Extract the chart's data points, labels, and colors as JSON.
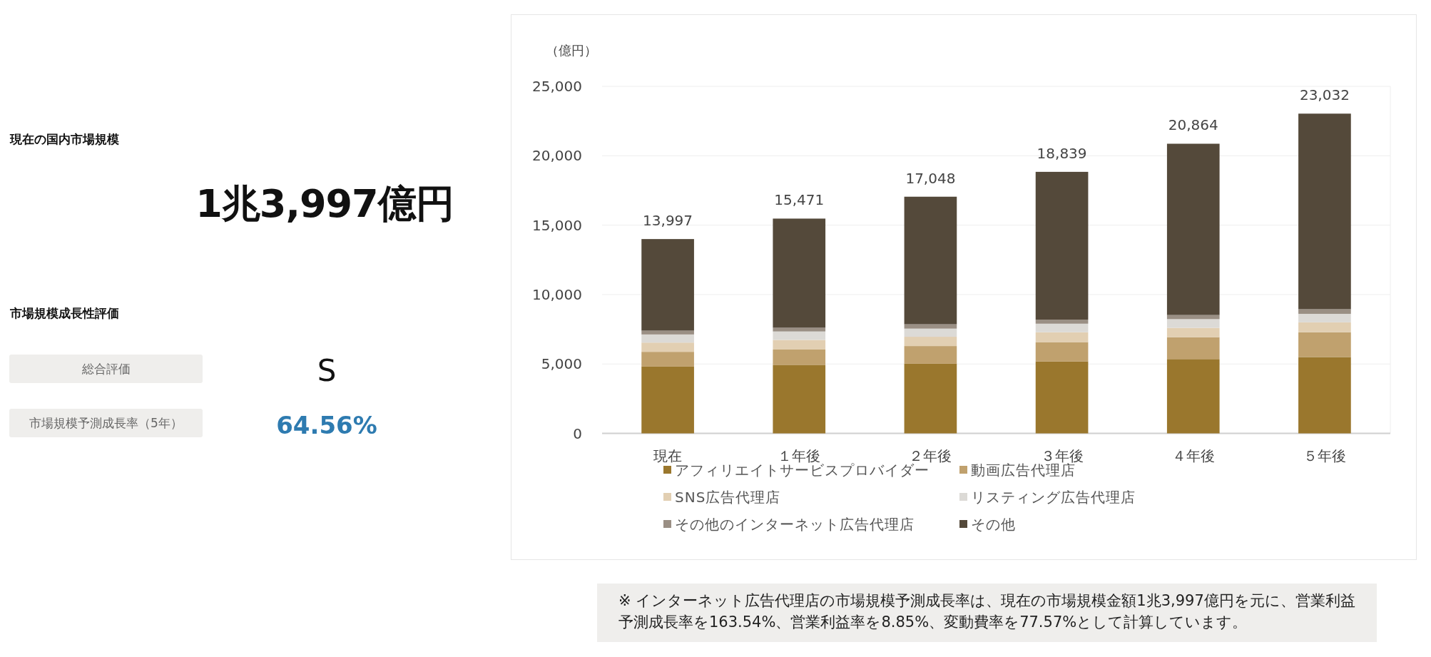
{
  "chart_data": [
    {
      "type": "other",
      "title": "現在の国内市場規模",
      "annotations": [
        "1兆3,997億円",
        "市場規模成長性評価",
        "総合評価",
        "S",
        "市場規模予測成長率（5年）",
        "64.56%"
      ]
    },
    {
      "type": "bar",
      "stacked": true,
      "ylabel": "（億円）",
      "categories": [
        "現在",
        "１年後",
        "２年後",
        "３年後",
        "４年後",
        "５年後"
      ],
      "series": [
        {
          "name": "アフィリエイトサービスプロバイダー",
          "color": "#9a772d",
          "values": [
            4810,
            4910,
            5015,
            5190,
            5355,
            5500
          ]
        },
        {
          "name": "動画広告代理店",
          "color": "#c0a16e",
          "values": [
            1065,
            1130,
            1275,
            1385,
            1575,
            1790
          ]
        },
        {
          "name": "SNS広告代理店",
          "color": "#e2cfb2",
          "values": [
            665,
            690,
            670,
            715,
            670,
            710
          ]
        },
        {
          "name": "リスティング広告代理店",
          "color": "#dcdad6",
          "values": [
            585,
            610,
            585,
            610,
            630,
            610
          ]
        },
        {
          "name": "その他のインターネット広告代理店",
          "color": "#9a8f84",
          "values": [
            275,
            270,
            315,
            290,
            295,
            335
          ]
        },
        {
          "name": "その他",
          "color": "#54493a",
          "values": [
            6597,
            7861,
            9188,
            10649,
            12339,
            14087
          ]
        }
      ],
      "totals": [
        "13,997",
        "15,471",
        "17,048",
        "18,839",
        "20,864",
        "23,032"
      ],
      "ylim": [
        0,
        25000
      ],
      "yticks": [
        0,
        {
          "value": 5000,
          "label": "5,000"
        },
        {
          "value": 10000,
          "label": "10,000"
        },
        {
          "value": 15000,
          "label": "15,000"
        },
        {
          "value": 20000,
          "label": "20,000"
        },
        {
          "value": 25000,
          "label": "25,000"
        }
      ],
      "grid": "y",
      "legend": "bottom",
      "annotations": [
        "※ インターネット広告代理店の市場規模予測成長率は、現在の市場規模金額1兆3,997億円を元に、営業利益予測成長率を163.54%、営業利益率を8.85%、変動費率を77.57%として計算しています。"
      ]
    }
  ]
}
